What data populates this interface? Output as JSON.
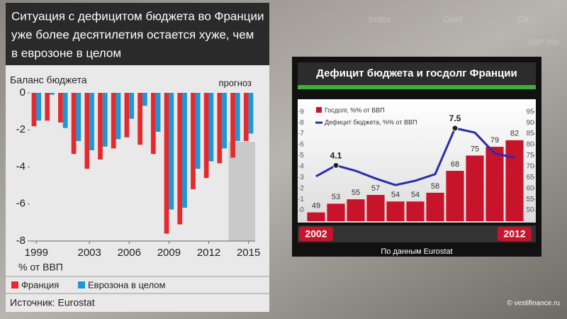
{
  "background_labels": [
    "Index",
    "Gold",
    "Oil",
    "S&P 500"
  ],
  "credit": "© vestifinance.ru",
  "chart_data": [
    {
      "type": "bar",
      "title": [
        "Ситуация с дефицитом бюджета во Франции",
        "уже более десятилетия остается хуже, чем",
        "в еврозоне в целом"
      ],
      "ylabel": "Баланс бюджета",
      "annotation": "прогноз",
      "unit_label": "%  от ВВП",
      "source": "Источник: Eurostat",
      "x": [
        1999,
        2000,
        2001,
        2002,
        2003,
        2004,
        2005,
        2006,
        2007,
        2008,
        2009,
        2010,
        2011,
        2012,
        2013,
        2014,
        2015
      ],
      "series": [
        {
          "name": "Франция",
          "color": "#e42a2f",
          "values": [
            -1.8,
            -1.5,
            -1.6,
            -3.3,
            -4.1,
            -3.6,
            -3.0,
            -2.4,
            -2.8,
            -3.3,
            -7.6,
            -7.1,
            -5.2,
            -4.6,
            -3.8,
            -3.5,
            -2.6
          ]
        },
        {
          "name": "Еврозона в целом",
          "color": "#1b98d5",
          "values": [
            -1.5,
            -0.1,
            -1.9,
            -2.6,
            -3.1,
            -2.9,
            -2.5,
            -1.4,
            -0.7,
            -2.1,
            -6.3,
            -6.2,
            -4.1,
            -3.7,
            -3.0,
            -2.6,
            -2.2
          ]
        }
      ],
      "xlim": [
        1998.5,
        2015.5
      ],
      "xticks": [
        1999,
        2003,
        2006,
        2009,
        2012,
        2015
      ],
      "ylim": [
        -8,
        0
      ],
      "yticks": [
        0,
        -2,
        -4,
        -6,
        -8
      ],
      "forecast_start": 2014
    },
    {
      "type": "combo",
      "title": "Дефицит бюджета и госдолг Франции",
      "note": "По данным Eurostat",
      "x": [
        2002,
        2003,
        2004,
        2005,
        2006,
        2007,
        2008,
        2009,
        2010,
        2011,
        2012
      ],
      "xlim": [
        2001.5,
        2012.5
      ],
      "xticks": [
        2002,
        2012
      ],
      "ylim": [
        -1,
        9.5
      ],
      "yticks": [
        0,
        1,
        2,
        3,
        4,
        5,
        6,
        7,
        8,
        9
      ],
      "y2lim": [
        45,
        97.5
      ],
      "y2ticks": [
        50,
        55,
        60,
        65,
        70,
        75,
        80,
        85,
        90,
        95
      ],
      "series": [
        {
          "name": "Госдолг, %% от ВВП",
          "type": "bar",
          "axis": "y2",
          "color": "#c8142a",
          "values": [
            49,
            53,
            55,
            57,
            54,
            54,
            58,
            68,
            75,
            79,
            82
          ]
        },
        {
          "name": "Дефицит бюджета, %% от ВВП",
          "type": "line",
          "color": "#2b2bb0",
          "values": [
            3.1,
            4.1,
            3.6,
            2.9,
            2.3,
            2.7,
            3.3,
            7.5,
            7.1,
            5.2,
            4.8
          ],
          "value_labels": [
            null,
            "4.1",
            null,
            null,
            null,
            null,
            null,
            "7.5",
            null,
            null,
            null
          ]
        }
      ]
    }
  ]
}
